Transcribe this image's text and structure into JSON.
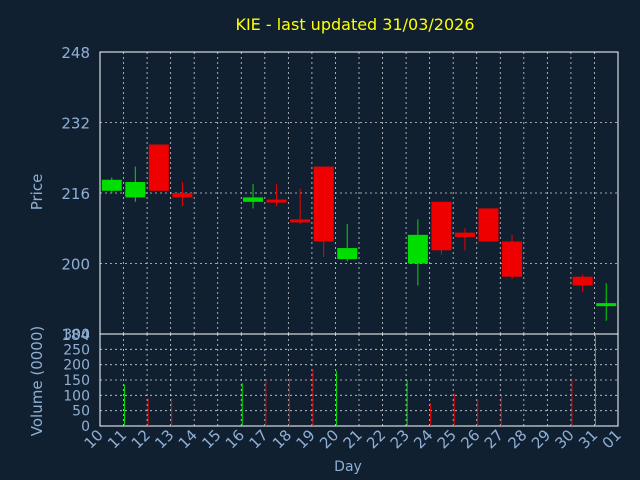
{
  "title": "KIE - last updated 31/03/2026",
  "colors": {
    "background": "#112030",
    "plot_border": "#ffffff",
    "grid": "#d0d0d0",
    "up": "#00dd00",
    "down": "#ee0000",
    "axis_text": "#8fb0d4",
    "title": "#ffff00"
  },
  "chart_data": [
    {
      "type": "candlestick",
      "ylabel": "Price",
      "ylim": [
        184,
        248
      ],
      "yticks": [
        248,
        232,
        216,
        200,
        184
      ],
      "grid": true,
      "days": [
        {
          "day": "10",
          "open": 216.5,
          "high": 219.5,
          "low": 216.0,
          "close": 219.0
        },
        {
          "day": "11",
          "open": 215.0,
          "high": 222.0,
          "low": 214.0,
          "close": 218.5
        },
        {
          "day": "12",
          "open": 227.0,
          "high": 227.0,
          "low": 216.5,
          "close": 216.5
        },
        {
          "day": "13",
          "open": 216.0,
          "high": 218.5,
          "low": 213.0,
          "close": 215.0
        },
        {
          "day": "16",
          "open": 214.0,
          "high": 218.0,
          "low": 212.5,
          "close": 215.0
        },
        {
          "day": "17",
          "open": 214.5,
          "high": 218.0,
          "low": 213.0,
          "close": 214.0
        },
        {
          "day": "18",
          "open": 210.0,
          "high": 217.0,
          "low": 209.0,
          "close": 209.5
        },
        {
          "day": "19",
          "open": 222.0,
          "high": 222.0,
          "low": 201.5,
          "close": 205.0
        },
        {
          "day": "20",
          "open": 201.0,
          "high": 209.0,
          "low": 200.5,
          "close": 203.5
        },
        {
          "day": "23",
          "open": 200.0,
          "high": 210.0,
          "low": 195.0,
          "close": 206.5
        },
        {
          "day": "24",
          "open": 214.0,
          "high": 214.0,
          "low": 202.0,
          "close": 203.0
        },
        {
          "day": "25",
          "open": 207.0,
          "high": 208.0,
          "low": 203.0,
          "close": 206.0
        },
        {
          "day": "26",
          "open": 212.5,
          "high": 212.5,
          "low": 205.0,
          "close": 205.0
        },
        {
          "day": "27",
          "open": 205.0,
          "high": 206.5,
          "low": 196.5,
          "close": 197.0
        },
        {
          "day": "30",
          "open": 197.0,
          "high": 197.5,
          "low": 193.5,
          "close": 195.0
        },
        {
          "day": "31",
          "open": 190.5,
          "high": 195.5,
          "low": 187.0,
          "close": 191.0
        }
      ]
    },
    {
      "type": "bar",
      "ylabel": "Volume (0000)",
      "xlabel": "Day",
      "ylim": [
        0,
        300
      ],
      "yticks": [
        300,
        250,
        200,
        150,
        100,
        50,
        0
      ],
      "grid": true,
      "x_ticks": [
        "10",
        "11",
        "12",
        "13",
        "14",
        "15",
        "16",
        "17",
        "18",
        "19",
        "20",
        "21",
        "22",
        "23",
        "24",
        "25",
        "26",
        "27",
        "28",
        "29",
        "30",
        "31",
        "01"
      ],
      "bars": [
        {
          "day": "11",
          "value": 135,
          "direction": "up"
        },
        {
          "day": "12",
          "value": 90,
          "direction": "down"
        },
        {
          "day": "13",
          "value": 90,
          "direction": "down"
        },
        {
          "day": "16",
          "value": 140,
          "direction": "up"
        },
        {
          "day": "17",
          "value": 145,
          "direction": "down"
        },
        {
          "day": "18",
          "value": 155,
          "direction": "down"
        },
        {
          "day": "19",
          "value": 185,
          "direction": "down"
        },
        {
          "day": "20",
          "value": 180,
          "direction": "up"
        },
        {
          "day": "23",
          "value": 150,
          "direction": "up"
        },
        {
          "day": "24",
          "value": 75,
          "direction": "down"
        },
        {
          "day": "25",
          "value": 105,
          "direction": "down"
        },
        {
          "day": "26",
          "value": 85,
          "direction": "down"
        },
        {
          "day": "27",
          "value": 100,
          "direction": "down"
        },
        {
          "day": "30",
          "value": 150,
          "direction": "down"
        },
        {
          "day": "31",
          "value": 300,
          "direction": "up"
        }
      ]
    }
  ]
}
